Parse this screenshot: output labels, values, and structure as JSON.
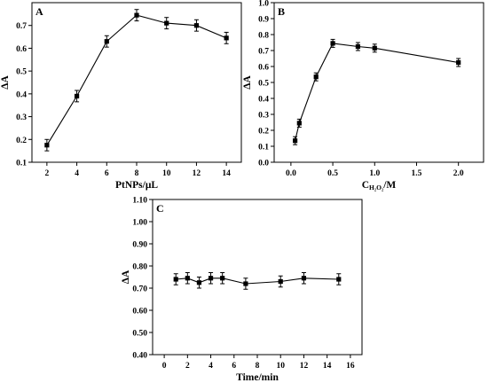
{
  "chart_data": [
    {
      "panel": "A",
      "type": "line",
      "xlabel": "PtNPs/μL",
      "ylabel": "ΔA",
      "xlim": [
        1,
        15
      ],
      "ylim": [
        0.1,
        0.8
      ],
      "xticks": [
        2,
        4,
        6,
        8,
        10,
        12,
        14
      ],
      "yticks": [
        0.1,
        0.2,
        0.3,
        0.4,
        0.5,
        0.6,
        0.7
      ],
      "x": [
        2,
        4,
        6,
        8,
        10,
        12,
        14
      ],
      "y": [
        0.175,
        0.39,
        0.63,
        0.745,
        0.71,
        0.7,
        0.645
      ],
      "err": [
        0.025,
        0.025,
        0.025,
        0.025,
        0.025,
        0.025,
        0.025
      ]
    },
    {
      "panel": "B",
      "type": "line",
      "xlabel": "CH₂O₂/M",
      "ylabel": "ΔA",
      "xlim": [
        -0.2,
        2.3
      ],
      "ylim": [
        0.0,
        1.0
      ],
      "xticks": [
        0.0,
        0.5,
        1.0,
        1.5,
        2.0
      ],
      "yticks": [
        0.0,
        0.1,
        0.2,
        0.3,
        0.4,
        0.5,
        0.6,
        0.7,
        0.8,
        0.9,
        1.0
      ],
      "x": [
        0.05,
        0.1,
        0.3,
        0.5,
        0.8,
        1.0,
        2.0
      ],
      "y": [
        0.135,
        0.245,
        0.535,
        0.745,
        0.725,
        0.715,
        0.625
      ],
      "err": [
        0.025,
        0.025,
        0.025,
        0.025,
        0.025,
        0.025,
        0.025
      ]
    },
    {
      "panel": "C",
      "type": "line",
      "xlabel": "Time/min",
      "ylabel": "ΔA",
      "xlim": [
        -1,
        17
      ],
      "ylim": [
        0.4,
        1.1
      ],
      "xticks": [
        0,
        2,
        4,
        6,
        8,
        10,
        12,
        14,
        16
      ],
      "yticks": [
        0.4,
        0.5,
        0.6,
        0.7,
        0.8,
        0.9,
        1.0,
        1.1
      ],
      "x": [
        1,
        2,
        3,
        4,
        5,
        7,
        10,
        12,
        15
      ],
      "y": [
        0.74,
        0.745,
        0.725,
        0.745,
        0.745,
        0.72,
        0.73,
        0.745,
        0.74
      ],
      "err": [
        0.025,
        0.025,
        0.025,
        0.025,
        0.025,
        0.025,
        0.025,
        0.025,
        0.025
      ]
    }
  ]
}
